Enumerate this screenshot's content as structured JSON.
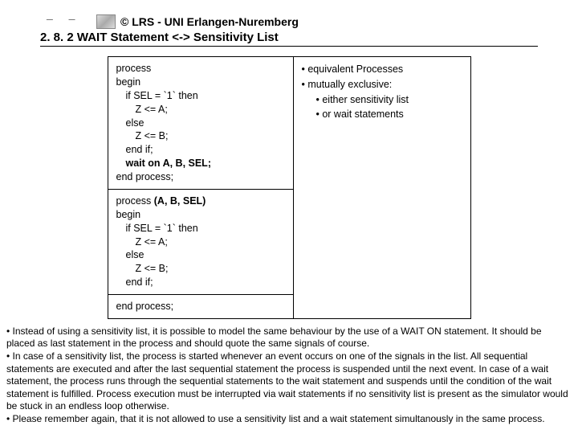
{
  "header": {
    "top_marks": "_ _",
    "copyright": "© LRS - UNI Erlangen-Nuremberg",
    "section_number": "2. 8. 2",
    "section_title": "WAIT Statement <-> Sensitivity List"
  },
  "code1": {
    "l1": "process",
    "l2": "begin",
    "l3": "if SEL = `1` then",
    "l4": "Z <= A;",
    "l5": "else",
    "l6": "Z <= B;",
    "l7": "end if;",
    "l8": "wait on A, B, SEL;",
    "l9": "end process;"
  },
  "code2": {
    "l1a": "process ",
    "l1b": "(A, B, SEL)",
    "l2": "begin",
    "l3": "if SEL = `1` then",
    "l4": "Z <= A;",
    "l5": "else",
    "l6": "Z <= B;",
    "l7": "end if;",
    "l9": "end process;"
  },
  "bullets": {
    "b1": "• equivalent Processes",
    "b2": "• mutually exclusive:",
    "b3": "• either sensitivity list",
    "b4": "• or wait statements"
  },
  "notes": {
    "p1": "• Instead of using a sensitivity list, it is possible to model the same behaviour by the use of a WAIT ON statement. It should be placed as last statement in the process and should quote the same signals of course.",
    "p2": "• In case of a sensitivity list, the process is started whenever an event occurs on one of the signals in the list. All sequential statements are executed and after the last sequential statement the process is suspended until the next event. In case of a wait statement, the process runs through the sequential statements to the wait statement and suspends until the condition of the wait statement is fulfilled. Process execution must be interrupted via wait statements if no sensitivity list is present as the simulator would be stuck in an endless loop otherwise.",
    "p3": "• Please remember again, that it is not allowed to use a sensitivity list and a wait statement simultanously in the same process."
  }
}
